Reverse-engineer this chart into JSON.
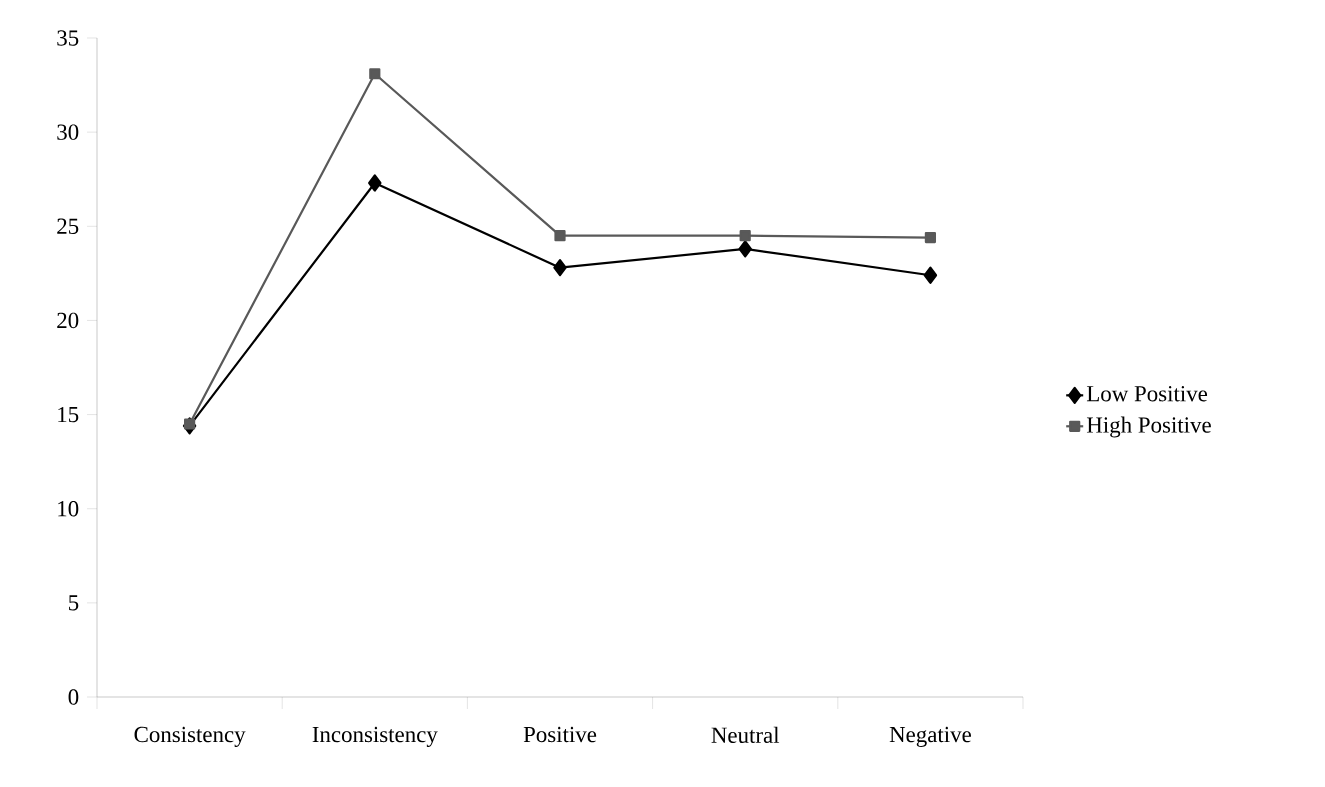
{
  "chart_data": {
    "type": "line",
    "categories": [
      "Consistency",
      "Inconsistency",
      "Positive",
      "Neutral",
      "Negative"
    ],
    "series": [
      {
        "name": "Low Positive",
        "color": "#000000",
        "marker": "diamond",
        "values": [
          14.4,
          27.3,
          22.8,
          23.8,
          22.4
        ]
      },
      {
        "name": "High Positive",
        "color": "#595959",
        "marker": "square",
        "values": [
          14.5,
          33.1,
          24.5,
          24.5,
          24.4
        ]
      }
    ],
    "ylim": [
      0,
      35
    ],
    "yticks": [
      0,
      5,
      10,
      15,
      20,
      25,
      30,
      35
    ],
    "grid": false,
    "legend": "right"
  }
}
